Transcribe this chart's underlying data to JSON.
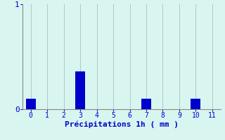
{
  "categories": [
    0,
    1,
    2,
    3,
    4,
    5,
    6,
    7,
    8,
    9,
    10,
    11
  ],
  "values": [
    0.1,
    0.0,
    0.0,
    0.36,
    0.0,
    0.0,
    0.0,
    0.1,
    0.0,
    0.0,
    0.1,
    0.0
  ],
  "bar_color": "#0000cc",
  "background_color": "#d8f5f0",
  "grid_color": "#b0c8c8",
  "xlabel": "Précipitations 1h ( mm )",
  "xlabel_color": "#0000cc",
  "tick_color": "#0000cc",
  "axis_color": "#888888",
  "ylim": [
    0,
    1.0
  ],
  "xlim": [
    -0.5,
    11.5
  ],
  "yticks": [
    0,
    1
  ],
  "bar_width": 0.6,
  "tick_fontsize": 7,
  "xlabel_fontsize": 8
}
